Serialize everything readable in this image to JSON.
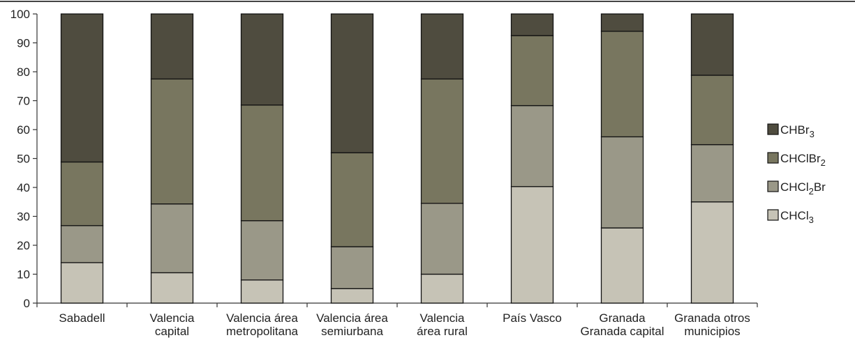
{
  "chart_data": {
    "type": "bar",
    "stacked": true,
    "categories": [
      [
        "Sabadell"
      ],
      [
        "Valencia",
        "capital"
      ],
      [
        "Valencia área",
        "metropolitana"
      ],
      [
        "Valencia área",
        "semiurbana"
      ],
      [
        "Valencia",
        "área rural"
      ],
      [
        "País Vasco"
      ],
      [
        "Granada",
        "Granada capital"
      ],
      [
        "Granada otros",
        "municipios"
      ]
    ],
    "series": [
      {
        "name": "CHCl",
        "sub": "3",
        "color": "#c6c3b6",
        "values": [
          14,
          10.5,
          8,
          5,
          10,
          40.3,
          26,
          35
        ]
      },
      {
        "name": "CHCl",
        "sub": "2",
        "suffix": "Br",
        "color": "#9a9888",
        "values": [
          12.8,
          23.8,
          20.5,
          14.5,
          24.5,
          28,
          31.5,
          19.8
        ]
      },
      {
        "name": "CHClBr",
        "sub": "2",
        "color": "#78765f",
        "values": [
          22,
          43.2,
          40,
          32.5,
          43,
          24.2,
          36.5,
          24
        ]
      },
      {
        "name": "CHBr",
        "sub": "3",
        "color": "#4f4c3f",
        "values": [
          51.2,
          22.5,
          31.5,
          48,
          22.5,
          7.5,
          6,
          21.2
        ]
      }
    ],
    "ylim": [
      0,
      100
    ],
    "yticks": [
      0,
      10,
      20,
      30,
      40,
      50,
      60,
      70,
      80,
      90,
      100
    ],
    "legend": "right",
    "grid": false
  }
}
